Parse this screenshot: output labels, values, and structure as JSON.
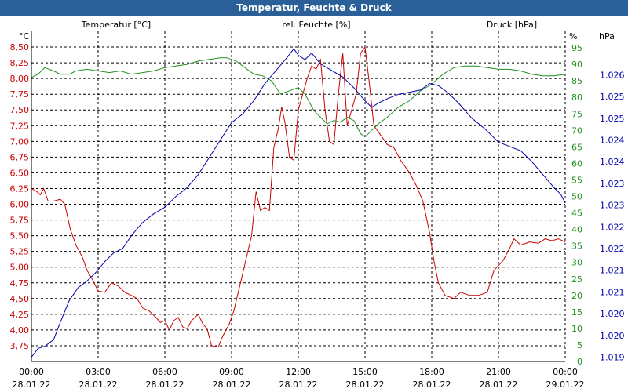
{
  "window": {
    "title": "Temperatur, Feuchte & Druck"
  },
  "colors": {
    "temperature": "#cc0000",
    "humidity": "#1f8f1f",
    "pressure": "#0000aa",
    "grid": "#000000",
    "title_bg": "#2b5f97"
  },
  "chart_data": {
    "type": "line",
    "title": "Temperatur, Feuchte & Druck",
    "legend": [
      "Temperatur [°C]",
      "rel. Feuchte [%]",
      "Druck [hPa]"
    ],
    "x": {
      "range_hours": [
        0,
        24
      ],
      "tick_hours": [
        0,
        3,
        6,
        9,
        12,
        15,
        18,
        21,
        24
      ],
      "tick_times": [
        "00:00",
        "03:00",
        "06:00",
        "09:00",
        "12:00",
        "15:00",
        "18:00",
        "21:00",
        "00:00"
      ],
      "tick_dates": [
        "28.01.22",
        "28.01.22",
        "28.01.22",
        "28.01.22",
        "28.01.22",
        "28.01.22",
        "28.01.22",
        "28.01.22",
        "29.01.22"
      ]
    },
    "y_left": {
      "unit": "°C",
      "range": [
        3.5,
        8.75
      ],
      "ticks": [
        "3,75",
        "4,00",
        "4,25",
        "4,50",
        "4,75",
        "5,00",
        "5,25",
        "5,50",
        "5,75",
        "6,00",
        "6,25",
        "6,50",
        "6,75",
        "7,00",
        "7,25",
        "7,50",
        "7,75",
        "8,00",
        "8,25",
        "8,50"
      ]
    },
    "y_mid": {
      "unit": "%",
      "range": [
        0,
        100
      ],
      "ticks": [
        "0",
        "5",
        "10",
        "15",
        "20",
        "25",
        "30",
        "35",
        "40",
        "45",
        "50",
        "55",
        "60",
        "65",
        "70",
        "75",
        "80",
        "85",
        "90",
        "95"
      ]
    },
    "y_right": {
      "unit": "hPa",
      "range": [
        1018.9,
        1026.5
      ],
      "ticks": [
        "1.019",
        "1.020",
        "1.020",
        "1.021",
        "1.021",
        "1.022",
        "1.022",
        "1.023",
        "1.023",
        "1.024",
        "1.024",
        "1.025",
        "1.025",
        "1.026"
      ],
      "tick_values": [
        1019.0,
        1019.5,
        1020.0,
        1020.5,
        1021.0,
        1021.5,
        1022.0,
        1022.5,
        1023.0,
        1023.5,
        1024.0,
        1024.5,
        1025.0,
        1025.5
      ]
    },
    "series": [
      {
        "name": "Temperatur",
        "unit": "°C",
        "axis": "left",
        "points": [
          [
            0,
            6.25
          ],
          [
            0.25,
            6.2
          ],
          [
            0.4,
            6.15
          ],
          [
            0.55,
            6.25
          ],
          [
            0.75,
            6.05
          ],
          [
            1.0,
            6.05
          ],
          [
            1.3,
            6.08
          ],
          [
            1.5,
            6.0
          ],
          [
            1.75,
            5.6
          ],
          [
            2.0,
            5.35
          ],
          [
            2.3,
            5.15
          ],
          [
            2.5,
            4.95
          ],
          [
            2.75,
            4.8
          ],
          [
            3.0,
            4.62
          ],
          [
            3.3,
            4.6
          ],
          [
            3.6,
            4.75
          ],
          [
            3.9,
            4.7
          ],
          [
            4.2,
            4.6
          ],
          [
            4.5,
            4.55
          ],
          [
            4.75,
            4.5
          ],
          [
            5.0,
            4.35
          ],
          [
            5.3,
            4.3
          ],
          [
            5.6,
            4.2
          ],
          [
            5.8,
            4.12
          ],
          [
            6.0,
            4.15
          ],
          [
            6.2,
            4.0
          ],
          [
            6.4,
            4.15
          ],
          [
            6.6,
            4.2
          ],
          [
            6.8,
            4.05
          ],
          [
            7.0,
            4.02
          ],
          [
            7.2,
            4.15
          ],
          [
            7.5,
            4.25
          ],
          [
            7.7,
            4.1
          ],
          [
            7.9,
            4.02
          ],
          [
            8.1,
            3.75
          ],
          [
            8.4,
            3.73
          ],
          [
            8.6,
            3.9
          ],
          [
            8.9,
            4.1
          ],
          [
            9.1,
            4.3
          ],
          [
            9.3,
            4.6
          ],
          [
            9.5,
            4.9
          ],
          [
            9.7,
            5.2
          ],
          [
            9.9,
            5.5
          ],
          [
            10.1,
            6.2
          ],
          [
            10.3,
            5.9
          ],
          [
            10.5,
            5.95
          ],
          [
            10.7,
            5.9
          ],
          [
            10.9,
            6.9
          ],
          [
            11.1,
            7.2
          ],
          [
            11.25,
            7.55
          ],
          [
            11.4,
            7.3
          ],
          [
            11.6,
            6.75
          ],
          [
            11.8,
            6.7
          ],
          [
            12.0,
            7.5
          ],
          [
            12.2,
            7.75
          ],
          [
            12.4,
            8.0
          ],
          [
            12.6,
            8.2
          ],
          [
            12.8,
            8.15
          ],
          [
            13.0,
            8.3
          ],
          [
            13.2,
            7.5
          ],
          [
            13.4,
            7.0
          ],
          [
            13.6,
            6.95
          ],
          [
            13.8,
            7.75
          ],
          [
            14.0,
            8.4
          ],
          [
            14.2,
            7.25
          ],
          [
            14.4,
            7.5
          ],
          [
            14.6,
            7.75
          ],
          [
            14.8,
            8.4
          ],
          [
            15.0,
            8.5
          ],
          [
            15.2,
            7.9
          ],
          [
            15.4,
            7.25
          ],
          [
            15.6,
            7.15
          ],
          [
            15.8,
            7.05
          ],
          [
            16.0,
            6.95
          ],
          [
            16.3,
            6.9
          ],
          [
            16.6,
            6.7
          ],
          [
            17.0,
            6.5
          ],
          [
            17.3,
            6.3
          ],
          [
            17.6,
            6.05
          ],
          [
            17.9,
            5.55
          ],
          [
            18.1,
            5.1
          ],
          [
            18.3,
            4.75
          ],
          [
            18.6,
            4.55
          ],
          [
            19.0,
            4.5
          ],
          [
            19.3,
            4.6
          ],
          [
            19.7,
            4.55
          ],
          [
            20.1,
            4.55
          ],
          [
            20.5,
            4.6
          ],
          [
            20.8,
            4.95
          ],
          [
            21.2,
            5.1
          ],
          [
            21.5,
            5.3
          ],
          [
            21.7,
            5.45
          ],
          [
            22.0,
            5.35
          ],
          [
            22.4,
            5.4
          ],
          [
            22.8,
            5.38
          ],
          [
            23.1,
            5.45
          ],
          [
            23.4,
            5.42
          ],
          [
            23.7,
            5.45
          ],
          [
            24.0,
            5.4
          ]
        ]
      },
      {
        "name": "rel. Feuchte",
        "unit": "%",
        "axis": "mid",
        "points": [
          [
            0,
            86
          ],
          [
            0.3,
            87
          ],
          [
            0.6,
            89
          ],
          [
            1.0,
            88
          ],
          [
            1.3,
            87
          ],
          [
            1.7,
            87
          ],
          [
            2.0,
            88
          ],
          [
            2.5,
            88.5
          ],
          [
            3.0,
            88
          ],
          [
            3.5,
            87.5
          ],
          [
            4.0,
            88
          ],
          [
            4.5,
            87
          ],
          [
            5.0,
            87.5
          ],
          [
            5.5,
            88
          ],
          [
            6.0,
            89
          ],
          [
            6.5,
            89.5
          ],
          [
            7.0,
            90
          ],
          [
            7.5,
            91
          ],
          [
            8.0,
            91.5
          ],
          [
            8.5,
            92
          ],
          [
            8.8,
            92
          ],
          [
            9.2,
            91
          ],
          [
            9.6,
            89
          ],
          [
            10.0,
            87
          ],
          [
            10.4,
            86.5
          ],
          [
            10.8,
            85
          ],
          [
            11.2,
            81
          ],
          [
            11.6,
            82
          ],
          [
            12.0,
            83
          ],
          [
            12.3,
            81
          ],
          [
            12.7,
            76
          ],
          [
            13.0,
            74
          ],
          [
            13.3,
            72
          ],
          [
            13.6,
            73
          ],
          [
            13.9,
            72.5
          ],
          [
            14.2,
            74
          ],
          [
            14.5,
            73
          ],
          [
            14.8,
            69
          ],
          [
            15.0,
            68
          ],
          [
            15.3,
            70
          ],
          [
            15.6,
            72
          ],
          [
            16.0,
            74
          ],
          [
            16.5,
            77
          ],
          [
            17.0,
            79
          ],
          [
            17.5,
            82
          ],
          [
            18.0,
            84
          ],
          [
            18.5,
            87
          ],
          [
            19.0,
            89
          ],
          [
            19.5,
            89.5
          ],
          [
            20.0,
            89.5
          ],
          [
            20.5,
            89
          ],
          [
            21.0,
            88.5
          ],
          [
            21.5,
            88.5
          ],
          [
            22.0,
            88
          ],
          [
            22.5,
            87
          ],
          [
            23.0,
            86.5
          ],
          [
            23.5,
            86.5
          ],
          [
            24.0,
            87
          ]
        ]
      },
      {
        "name": "Druck",
        "unit": "hPa",
        "axis": "right",
        "points": [
          [
            0,
            1019.0
          ],
          [
            0.3,
            1019.2
          ],
          [
            0.6,
            1019.25
          ],
          [
            1.0,
            1019.4
          ],
          [
            1.3,
            1019.8
          ],
          [
            1.7,
            1020.3
          ],
          [
            2.1,
            1020.6
          ],
          [
            2.5,
            1020.75
          ],
          [
            2.9,
            1020.95
          ],
          [
            3.3,
            1021.2
          ],
          [
            3.7,
            1021.4
          ],
          [
            4.1,
            1021.5
          ],
          [
            4.5,
            1021.8
          ],
          [
            5.0,
            1022.1
          ],
          [
            5.5,
            1022.3
          ],
          [
            6.0,
            1022.45
          ],
          [
            6.5,
            1022.7
          ],
          [
            7.0,
            1022.9
          ],
          [
            7.5,
            1023.2
          ],
          [
            8.0,
            1023.6
          ],
          [
            8.5,
            1024.0
          ],
          [
            9.0,
            1024.4
          ],
          [
            9.5,
            1024.6
          ],
          [
            10.0,
            1024.9
          ],
          [
            10.5,
            1025.3
          ],
          [
            11.0,
            1025.6
          ],
          [
            11.5,
            1025.9
          ],
          [
            11.8,
            1026.1
          ],
          [
            12.0,
            1025.95
          ],
          [
            12.3,
            1025.85
          ],
          [
            12.6,
            1026.0
          ],
          [
            13.0,
            1025.75
          ],
          [
            13.5,
            1025.6
          ],
          [
            14.0,
            1025.45
          ],
          [
            14.5,
            1025.2
          ],
          [
            15.0,
            1024.9
          ],
          [
            15.3,
            1024.75
          ],
          [
            15.6,
            1024.85
          ],
          [
            16.0,
            1024.95
          ],
          [
            16.5,
            1025.05
          ],
          [
            17.0,
            1025.1
          ],
          [
            17.5,
            1025.15
          ],
          [
            17.9,
            1025.3
          ],
          [
            18.3,
            1025.25
          ],
          [
            18.7,
            1025.1
          ],
          [
            19.2,
            1024.85
          ],
          [
            19.8,
            1024.5
          ],
          [
            20.4,
            1024.25
          ],
          [
            21.0,
            1023.95
          ],
          [
            21.5,
            1023.85
          ],
          [
            22.0,
            1023.75
          ],
          [
            22.5,
            1023.5
          ],
          [
            23.0,
            1023.2
          ],
          [
            23.5,
            1022.9
          ],
          [
            23.8,
            1022.75
          ],
          [
            24.0,
            1022.55
          ]
        ]
      }
    ]
  }
}
